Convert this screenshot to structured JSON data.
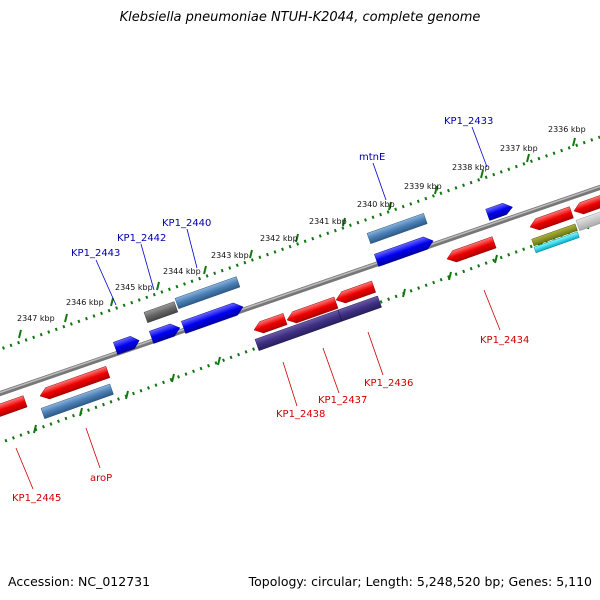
{
  "title": "Klebsiella pneumoniae NTUH-K2044, complete genome",
  "footer": {
    "accession": "Accession: NC_012731",
    "summary": "Topology: circular; Length: 5,248,520 bp; Genes: 5,110"
  },
  "colors": {
    "forward_gene": "#0000ee",
    "reverse_gene": "#ee0000",
    "backbone": "#888888",
    "ticks": "#117711",
    "forward_label": "#0000aa",
    "reverse_label": "#cc0000"
  },
  "kbp_ticks": [
    "2336 kbp",
    "2337 kbp",
    "2338 kbp",
    "2339 kbp",
    "2340 kbp",
    "2341 kbp",
    "2342 kbp",
    "2343 kbp",
    "2344 kbp",
    "2345 kbp",
    "2346 kbp",
    "2347 kbp"
  ],
  "forward_labels": [
    "KP1_2433",
    "mtnE",
    "KP1_2440",
    "KP1_2442",
    "KP1_2443"
  ],
  "reverse_labels": [
    "KP1_2434",
    "KP1_2436",
    "KP1_2437",
    "KP1_2438",
    "aroP",
    "KP1_2445"
  ]
}
